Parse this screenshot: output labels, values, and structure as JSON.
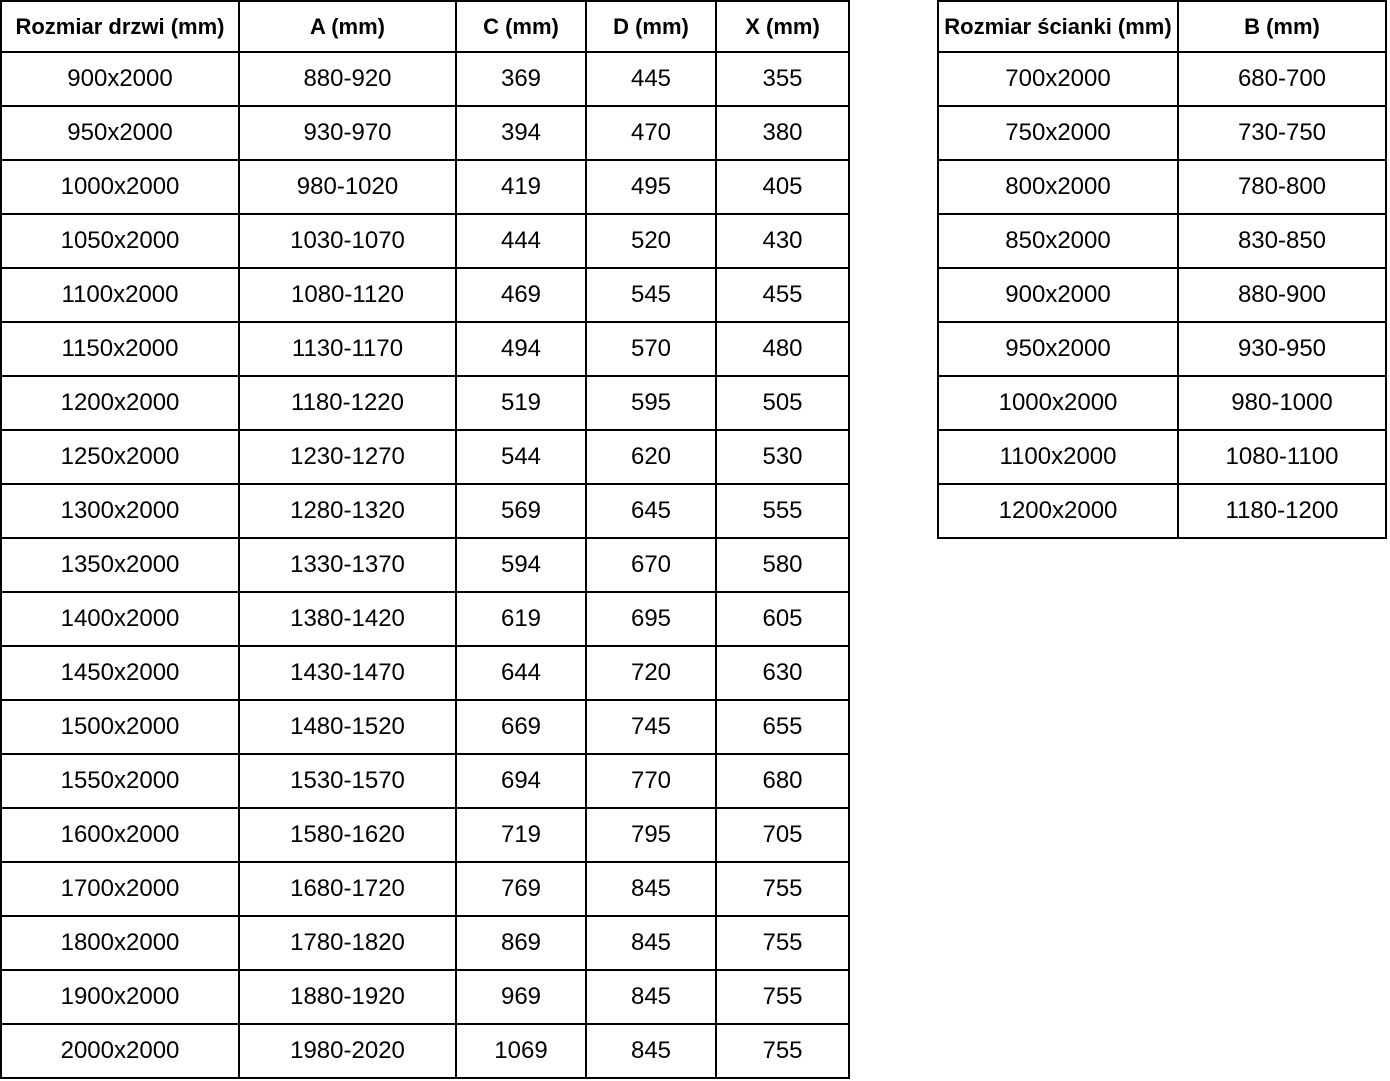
{
  "page": {
    "background_color": "#ffffff",
    "text_color": "#000000",
    "border_color": "#000000"
  },
  "door_table": {
    "headers": [
      "Rozmiar drzwi (mm)",
      "A (mm)",
      "C (mm)",
      "D (mm)",
      "X (mm)"
    ],
    "rows": [
      [
        "900x2000",
        "880-920",
        "369",
        "445",
        "355"
      ],
      [
        "950x2000",
        "930-970",
        "394",
        "470",
        "380"
      ],
      [
        "1000x2000",
        "980-1020",
        "419",
        "495",
        "405"
      ],
      [
        "1050x2000",
        "1030-1070",
        "444",
        "520",
        "430"
      ],
      [
        "1100x2000",
        "1080-1120",
        "469",
        "545",
        "455"
      ],
      [
        "1150x2000",
        "1130-1170",
        "494",
        "570",
        "480"
      ],
      [
        "1200x2000",
        "1180-1220",
        "519",
        "595",
        "505"
      ],
      [
        "1250x2000",
        "1230-1270",
        "544",
        "620",
        "530"
      ],
      [
        "1300x2000",
        "1280-1320",
        "569",
        "645",
        "555"
      ],
      [
        "1350x2000",
        "1330-1370",
        "594",
        "670",
        "580"
      ],
      [
        "1400x2000",
        "1380-1420",
        "619",
        "695",
        "605"
      ],
      [
        "1450x2000",
        "1430-1470",
        "644",
        "720",
        "630"
      ],
      [
        "1500x2000",
        "1480-1520",
        "669",
        "745",
        "655"
      ],
      [
        "1550x2000",
        "1530-1570",
        "694",
        "770",
        "680"
      ],
      [
        "1600x2000",
        "1580-1620",
        "719",
        "795",
        "705"
      ],
      [
        "1700x2000",
        "1680-1720",
        "769",
        "845",
        "755"
      ],
      [
        "1800x2000",
        "1780-1820",
        "869",
        "845",
        "755"
      ],
      [
        "1900x2000",
        "1880-1920",
        "969",
        "845",
        "755"
      ],
      [
        "2000x2000",
        "1980-2020",
        "1069",
        "845",
        "755"
      ]
    ]
  },
  "wall_table": {
    "headers": [
      "Rozmiar ścianki (mm)",
      "B (mm)"
    ],
    "rows": [
      [
        "700x2000",
        "680-700"
      ],
      [
        "750x2000",
        "730-750"
      ],
      [
        "800x2000",
        "780-800"
      ],
      [
        "850x2000",
        "830-850"
      ],
      [
        "900x2000",
        "880-900"
      ],
      [
        "950x2000",
        "930-950"
      ],
      [
        "1000x2000",
        "980-1000"
      ],
      [
        "1100x2000",
        "1080-1100"
      ],
      [
        "1200x2000",
        "1180-1200"
      ]
    ]
  }
}
